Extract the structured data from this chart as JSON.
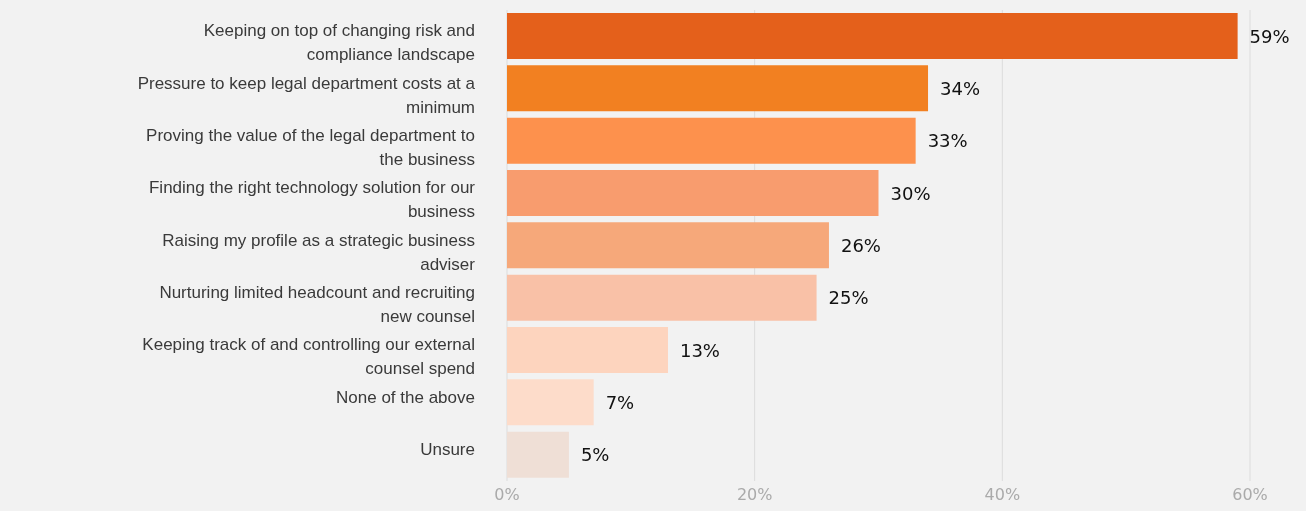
{
  "chart_data": {
    "type": "bar",
    "orientation": "horizontal",
    "categories": [
      "Keeping on top of changing risk and compliance landscape",
      "Pressure to keep legal department costs at a minimum",
      "Proving the value of the legal department to the business",
      "Finding the right technology solution for our business",
      "Raising my profile as a strategic business adviser",
      "Nurturing limited headcount and recruiting new counsel",
      "Keeping track of and controlling our external counsel spend",
      "None of the above",
      "Unsure"
    ],
    "values": [
      59,
      34,
      33,
      30,
      26,
      25,
      13,
      7,
      5
    ],
    "value_labels": [
      "59%",
      "34%",
      "33%",
      "30%",
      "26%",
      "25%",
      "13%",
      "7%",
      "5%"
    ],
    "colors": [
      "#e4601b",
      "#f28021",
      "#fd914d",
      "#f89c6e",
      "#f6a87a",
      "#f9c1a7",
      "#fdd4be",
      "#fddcca",
      "#efdfd6"
    ],
    "xlim": [
      0,
      60
    ],
    "xticks": [
      {
        "value": 0,
        "label": "0%"
      },
      {
        "value": 20,
        "label": "20%"
      },
      {
        "value": 40,
        "label": "40%"
      },
      {
        "value": 60,
        "label": "60%"
      }
    ],
    "grid": "x"
  }
}
